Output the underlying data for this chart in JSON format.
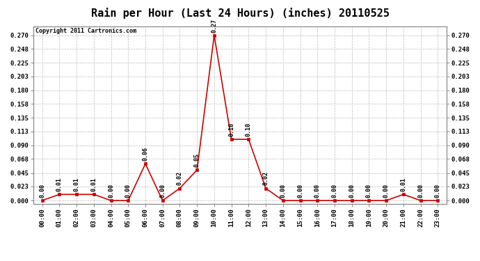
{
  "title": "Rain per Hour (Last 24 Hours) (inches) 20110525",
  "copyright_text": "Copyright 2011 Cartronics.com",
  "hours": [
    "00:00",
    "01:00",
    "02:00",
    "03:00",
    "04:00",
    "05:00",
    "06:00",
    "07:00",
    "08:00",
    "09:00",
    "10:00",
    "11:00",
    "12:00",
    "13:00",
    "14:00",
    "15:00",
    "16:00",
    "17:00",
    "18:00",
    "19:00",
    "20:00",
    "21:00",
    "22:00",
    "23:00"
  ],
  "values": [
    0.0,
    0.01,
    0.01,
    0.01,
    0.0,
    0.0,
    0.06,
    0.0,
    0.02,
    0.05,
    0.27,
    0.1,
    0.1,
    0.02,
    0.0,
    0.0,
    0.0,
    0.0,
    0.0,
    0.0,
    0.0,
    0.01,
    0.0,
    0.0
  ],
  "line_color": "#cc0000",
  "marker_color": "#cc0000",
  "background_color": "#ffffff",
  "grid_color": "#bbbbbb",
  "title_fontsize": 11,
  "annot_fontsize": 6.0,
  "tick_fontsize": 6.5,
  "copyright_fontsize": 6.0,
  "yticks": [
    0.0,
    0.023,
    0.045,
    0.068,
    0.09,
    0.113,
    0.135,
    0.158,
    0.18,
    0.203,
    0.225,
    0.248,
    0.27
  ],
  "ylim": [
    -0.005,
    0.285
  ]
}
